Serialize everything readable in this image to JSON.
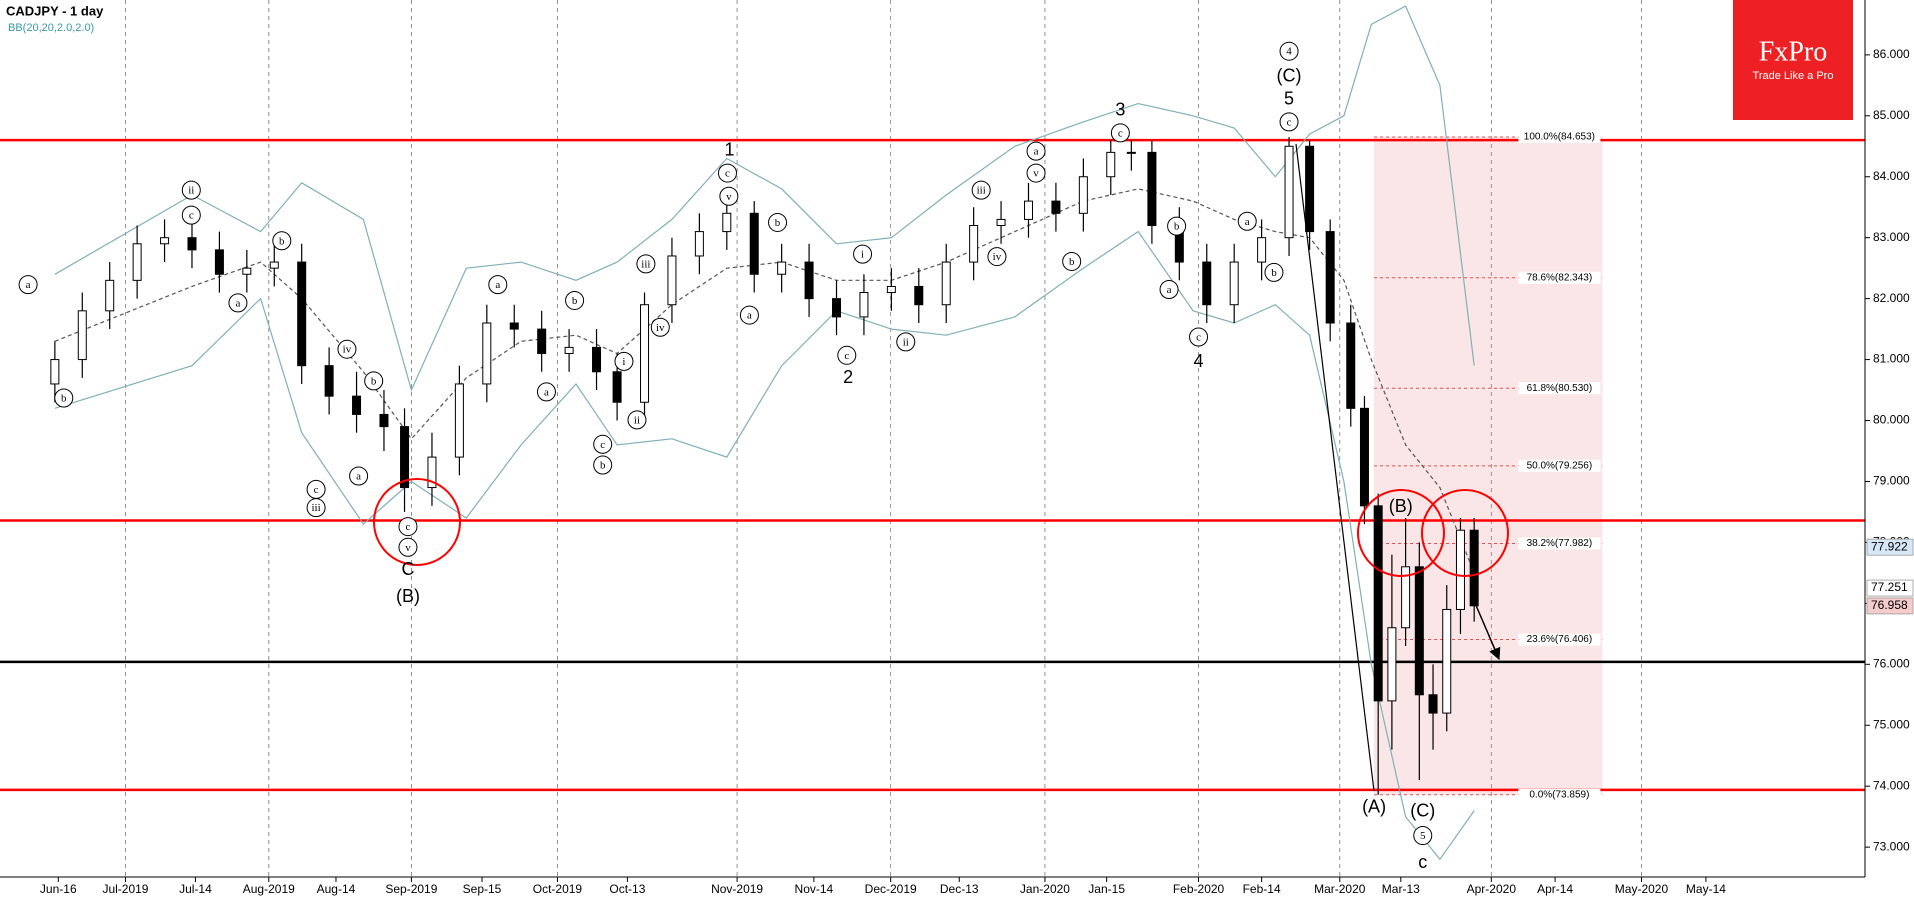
{
  "logo": {
    "brand": "FxPro",
    "tagline": "Trade Like a Pro"
  },
  "chart_data": {
    "type": "candlestick",
    "title": "CADJPY - 1 day",
    "subtitle": "BB(20,20,2.0,2.0)",
    "x": [
      0,
      4,
      8,
      12,
      16,
      20,
      24,
      28,
      32,
      36,
      40,
      44,
      48,
      51,
      55,
      59,
      63,
      67,
      71,
      75,
      79,
      82,
      86,
      90,
      94,
      98,
      102,
      106,
      110,
      114,
      118,
      122,
      126,
      130,
      134,
      138,
      142,
      146,
      150,
      154,
      157,
      160,
      164,
      168,
      172,
      176,
      180,
      183,
      186,
      189,
      191,
      193,
      195,
      197,
      199,
      201,
      203,
      205,
      207
    ],
    "open": [
      80.6,
      81.0,
      81.8,
      82.3,
      82.9,
      83.0,
      82.8,
      82.4,
      82.5,
      82.6,
      80.9,
      80.4,
      80.1,
      79.9,
      78.9,
      79.4,
      80.6,
      81.6,
      81.5,
      81.1,
      81.2,
      80.8,
      80.3,
      81.9,
      82.7,
      83.1,
      83.4,
      82.4,
      82.6,
      82.0,
      81.7,
      82.1,
      82.2,
      81.9,
      82.6,
      83.2,
      83.3,
      83.6,
      83.4,
      84.0,
      84.4,
      84.4,
      83.2,
      82.6,
      81.9,
      82.6,
      83.0,
      84.5,
      83.1,
      81.6,
      80.2,
      78.6,
      75.4,
      76.6,
      77.6,
      75.5,
      75.2,
      76.9,
      78.2
    ],
    "high": [
      81.3,
      82.1,
      82.6,
      83.2,
      83.3,
      83.3,
      83.1,
      82.8,
      82.9,
      82.9,
      81.2,
      80.8,
      80.5,
      80.2,
      79.8,
      80.9,
      81.9,
      81.9,
      81.8,
      81.5,
      81.5,
      81.1,
      82.1,
      83.0,
      83.4,
      83.7,
      83.6,
      82.9,
      82.9,
      82.3,
      82.4,
      82.5,
      82.5,
      82.9,
      83.5,
      83.6,
      83.9,
      83.9,
      84.3,
      84.6,
      84.6,
      84.6,
      83.5,
      82.9,
      82.9,
      83.3,
      84.65,
      84.6,
      83.3,
      81.9,
      80.4,
      78.8,
      77.8,
      78.4,
      78.0,
      76.0,
      77.3,
      78.4,
      78.4
    ],
    "low": [
      80.3,
      80.7,
      81.5,
      82.0,
      82.6,
      82.5,
      82.1,
      82.1,
      82.2,
      80.6,
      80.1,
      79.8,
      79.5,
      78.5,
      78.6,
      79.1,
      80.3,
      81.2,
      80.8,
      80.8,
      80.5,
      80.0,
      80.0,
      81.6,
      82.4,
      82.8,
      82.1,
      82.1,
      81.7,
      81.4,
      81.4,
      81.8,
      81.6,
      81.6,
      82.3,
      82.9,
      83.0,
      83.1,
      83.1,
      83.7,
      84.1,
      82.9,
      82.3,
      81.6,
      81.6,
      82.3,
      82.7,
      82.8,
      81.3,
      79.9,
      78.3,
      73.86,
      74.6,
      76.3,
      74.1,
      74.6,
      74.9,
      76.5,
      76.7
    ],
    "close": [
      81.0,
      81.8,
      82.3,
      82.9,
      83.0,
      82.8,
      82.4,
      82.5,
      82.6,
      80.9,
      80.4,
      80.1,
      79.9,
      78.9,
      79.4,
      80.6,
      81.6,
      81.5,
      81.1,
      81.2,
      80.8,
      80.3,
      81.9,
      82.7,
      83.1,
      83.4,
      82.4,
      82.6,
      82.0,
      81.7,
      82.1,
      82.2,
      81.9,
      82.6,
      83.2,
      83.3,
      83.6,
      83.4,
      84.0,
      84.4,
      84.4,
      83.2,
      82.6,
      81.9,
      82.6,
      83.0,
      84.5,
      83.1,
      81.6,
      80.2,
      78.6,
      75.4,
      76.6,
      77.6,
      75.5,
      75.2,
      76.9,
      78.2,
      76.96
    ],
    "xlim": [
      -8,
      264
    ],
    "ylim": [
      72.51,
      86.9
    ],
    "yticks": [
      {
        "value": 73,
        "label": "73.000"
      },
      {
        "value": 74,
        "label": "74.000"
      },
      {
        "value": 75,
        "label": "75.000"
      },
      {
        "value": 76,
        "label": "76.000"
      },
      {
        "value": 77,
        "label": "77.000"
      },
      {
        "value": 78,
        "label": "78.000"
      },
      {
        "value": 79,
        "label": "79.000"
      },
      {
        "value": 80,
        "label": "80.000"
      },
      {
        "value": 81,
        "label": "81.000"
      },
      {
        "value": 82,
        "label": "82.000"
      },
      {
        "value": 83,
        "label": "83.000"
      },
      {
        "value": 84,
        "label": "84.000"
      },
      {
        "value": 85,
        "label": "85.000"
      },
      {
        "value": 86,
        "label": "86.000"
      }
    ],
    "xticks": [
      {
        "value": 0.5,
        "label": "Jun-16"
      },
      {
        "value": 10.3,
        "label": "Jul-2019"
      },
      {
        "value": 20.5,
        "label": "Jul-14"
      },
      {
        "value": 31.2,
        "label": "Aug-2019"
      },
      {
        "value": 41,
        "label": "Aug-14"
      },
      {
        "value": 52,
        "label": "Sep-2019"
      },
      {
        "value": 62.3,
        "label": "Sep-15"
      },
      {
        "value": 73.3,
        "label": "Oct-2019"
      },
      {
        "value": 83.5,
        "label": "Oct-13"
      },
      {
        "value": 99.5,
        "label": "Nov-2019"
      },
      {
        "value": 110.7,
        "label": "Nov-14"
      },
      {
        "value": 121.9,
        "label": "Dec-2019"
      },
      {
        "value": 131.9,
        "label": "Dec-13"
      },
      {
        "value": 144.4,
        "label": "Jan-2020"
      },
      {
        "value": 153.4,
        "label": "Jan-15"
      },
      {
        "value": 166.8,
        "label": "Feb-2020"
      },
      {
        "value": 176,
        "label": "Feb-14"
      },
      {
        "value": 187.4,
        "label": "Mar-2020"
      },
      {
        "value": 196.3,
        "label": "Mar-13"
      },
      {
        "value": 209.5,
        "label": "Apr-2020"
      },
      {
        "value": 218.8,
        "label": "Apr-14"
      },
      {
        "value": 231.4,
        "label": "May-2020"
      },
      {
        "value": 240.8,
        "label": "May-14"
      }
    ],
    "bollinger": {
      "color": "#7fb0b8",
      "middle_color": "#555555",
      "x": [
        0,
        20,
        30,
        36,
        45,
        52,
        60,
        68,
        76,
        82,
        90,
        98,
        106,
        114,
        122,
        130,
        140,
        150,
        158,
        166,
        172,
        178,
        183,
        188,
        192,
        197,
        202,
        207
      ],
      "upper": [
        82.4,
        83.7,
        83.1,
        83.9,
        83.3,
        80.5,
        82.5,
        82.6,
        82.3,
        82.6,
        83.3,
        84.3,
        83.8,
        82.9,
        83.0,
        83.7,
        84.5,
        84.9,
        85.2,
        85.0,
        84.8,
        84.0,
        84.7,
        85.0,
        86.5,
        86.8,
        85.5,
        80.9
      ],
      "middle": [
        81.3,
        82.2,
        82.6,
        82.0,
        80.8,
        79.7,
        80.7,
        81.3,
        81.4,
        81.1,
        81.9,
        82.5,
        82.6,
        82.3,
        82.3,
        82.6,
        83.1,
        83.6,
        83.8,
        83.6,
        83.3,
        83.1,
        83.0,
        82.3,
        81.0,
        79.6,
        78.9,
        77.5
      ],
      "lower": [
        80.2,
        80.9,
        82.0,
        79.8,
        78.3,
        79.0,
        78.4,
        79.6,
        80.6,
        79.6,
        79.7,
        79.4,
        80.9,
        81.8,
        81.5,
        81.4,
        81.7,
        82.5,
        83.1,
        81.8,
        81.6,
        81.9,
        81.4,
        79.0,
        76.0,
        73.5,
        72.8,
        73.6
      ]
    },
    "hlines": [
      {
        "value": 84.6,
        "color": "#ff0000"
      },
      {
        "value": 78.36,
        "color": "#ff0000"
      },
      {
        "value": 73.94,
        "color": "#ff0000"
      },
      {
        "value": 76.04,
        "color": "#000000"
      }
    ],
    "fib": {
      "x": [
        192.4,
        225.7
      ],
      "color": "#e05050",
      "levels": [
        {
          "value": 84.653,
          "label": "100.0%(84.653)"
        },
        {
          "value": 82.343,
          "label": "78.6%(82.343)"
        },
        {
          "value": 80.53,
          "label": "61.8%(80.530)"
        },
        {
          "value": 79.256,
          "label": "50.0%(79.256)"
        },
        {
          "value": 77.982,
          "label": "38.2%(77.982)"
        },
        {
          "value": 76.406,
          "label": "23.6%(76.406)"
        },
        {
          "value": 73.859,
          "label": "0.0%(73.859)"
        }
      ]
    },
    "price_tags": [
      {
        "value": 77.922,
        "label": "77.922",
        "color": "#d6e8f7"
      },
      {
        "value": 77.251,
        "label": "77.251",
        "color": "#ffffff"
      },
      {
        "value": 76.958,
        "label": "76.958",
        "color": "#f4cccc"
      }
    ],
    "annotations": [
      {
        "text": "1",
        "x": 98.4,
        "y": 84.44,
        "circled": false
      },
      {
        "text": "c",
        "x": 98.1,
        "y": 84.06,
        "circled": true
      },
      {
        "text": "v",
        "x": 98.3,
        "y": 83.68,
        "circled": true
      },
      {
        "text": "2",
        "x": 115.7,
        "y": 80.71,
        "circled": false
      },
      {
        "text": "c",
        "x": 115.5,
        "y": 81.07,
        "circled": true
      },
      {
        "text": "3",
        "x": 155.4,
        "y": 85.1,
        "circled": false
      },
      {
        "text": "c",
        "x": 155.4,
        "y": 84.72,
        "circled": true
      },
      {
        "text": "4",
        "x": 166.8,
        "y": 80.97,
        "circled": false
      },
      {
        "text": "c",
        "x": 166.8,
        "y": 81.37,
        "circled": true
      },
      {
        "text": "4",
        "x": 180,
        "y": 86.06,
        "circled": true
      },
      {
        "text": "(C)",
        "x": 180,
        "y": 85.66,
        "circled": false
      },
      {
        "text": "5",
        "x": 180,
        "y": 85.28,
        "circled": false
      },
      {
        "text": "c",
        "x": 180,
        "y": 84.9,
        "circled": true
      },
      {
        "text": "(B)",
        "x": 196.3,
        "y": 78.59,
        "circled": false
      },
      {
        "text": "(A)",
        "x": 192.4,
        "y": 73.66,
        "circled": false
      },
      {
        "text": "(C)",
        "x": 199.5,
        "y": 73.6,
        "circled": false
      },
      {
        "text": "5",
        "x": 199.5,
        "y": 73.19,
        "circled": true
      },
      {
        "text": "c",
        "x": 199.5,
        "y": 72.75,
        "circled": false
      },
      {
        "text": "C",
        "x": 51.5,
        "y": 77.56,
        "circled": false
      },
      {
        "text": "(B)",
        "x": 51.5,
        "y": 77.12,
        "circled": false
      },
      {
        "text": "c",
        "x": 51.5,
        "y": 78.26,
        "circled": true
      },
      {
        "text": "v",
        "x": 51.5,
        "y": 77.92,
        "circled": true
      },
      {
        "text": "ii",
        "x": 19.9,
        "y": 83.78,
        "circled": true
      },
      {
        "text": "c",
        "x": 19.9,
        "y": 83.37,
        "circled": true
      },
      {
        "text": "a",
        "x": -3.9,
        "y": 82.23,
        "circled": true
      },
      {
        "text": "b",
        "x": 1.3,
        "y": 80.37,
        "circled": true
      },
      {
        "text": "a",
        "x": 26.7,
        "y": 81.93,
        "circled": true
      },
      {
        "text": "b",
        "x": 33.1,
        "y": 82.95,
        "circled": true
      },
      {
        "text": "iii",
        "x": 38.1,
        "y": 78.57,
        "circled": true
      },
      {
        "text": "c",
        "x": 38.1,
        "y": 78.87,
        "circled": true
      },
      {
        "text": "iv",
        "x": 42.6,
        "y": 81.17,
        "circled": true
      },
      {
        "text": "a",
        "x": 44.3,
        "y": 79.09,
        "circled": true
      },
      {
        "text": "b",
        "x": 46.5,
        "y": 80.65,
        "circled": true
      },
      {
        "text": "a",
        "x": 64.6,
        "y": 82.23,
        "circled": true
      },
      {
        "text": "b",
        "x": 75.8,
        "y": 81.97,
        "circled": true
      },
      {
        "text": "a",
        "x": 71.7,
        "y": 80.47,
        "circled": true
      },
      {
        "text": "c",
        "x": 79.9,
        "y": 79.61,
        "circled": true
      },
      {
        "text": "b",
        "x": 79.9,
        "y": 79.27,
        "circled": true
      },
      {
        "text": "i",
        "x": 83,
        "y": 80.97,
        "circled": true
      },
      {
        "text": "ii",
        "x": 84.9,
        "y": 80.01,
        "circled": true
      },
      {
        "text": "iii",
        "x": 86.2,
        "y": 82.57,
        "circled": true
      },
      {
        "text": "iv",
        "x": 88.3,
        "y": 81.53,
        "circled": true
      },
      {
        "text": "b",
        "x": 105.4,
        "y": 83.25,
        "circled": true
      },
      {
        "text": "a",
        "x": 101.3,
        "y": 81.73,
        "circled": true
      },
      {
        "text": "i",
        "x": 117.8,
        "y": 82.73,
        "circled": true
      },
      {
        "text": "ii",
        "x": 124.1,
        "y": 81.29,
        "circled": true
      },
      {
        "text": "iii",
        "x": 135.1,
        "y": 83.78,
        "circled": true
      },
      {
        "text": "iv",
        "x": 137.4,
        "y": 82.69,
        "circled": true
      },
      {
        "text": "a",
        "x": 143.1,
        "y": 84.42,
        "circled": true
      },
      {
        "text": "v",
        "x": 143.1,
        "y": 84.06,
        "circled": true
      },
      {
        "text": "b",
        "x": 148.3,
        "y": 82.61,
        "circled": true
      },
      {
        "text": "b",
        "x": 163.6,
        "y": 83.19,
        "circled": true
      },
      {
        "text": "a",
        "x": 162.5,
        "y": 82.15,
        "circled": true
      },
      {
        "text": "a",
        "x": 173.9,
        "y": 83.27,
        "circled": true
      },
      {
        "text": "b",
        "x": 177.8,
        "y": 82.43,
        "circled": true
      }
    ]
  }
}
